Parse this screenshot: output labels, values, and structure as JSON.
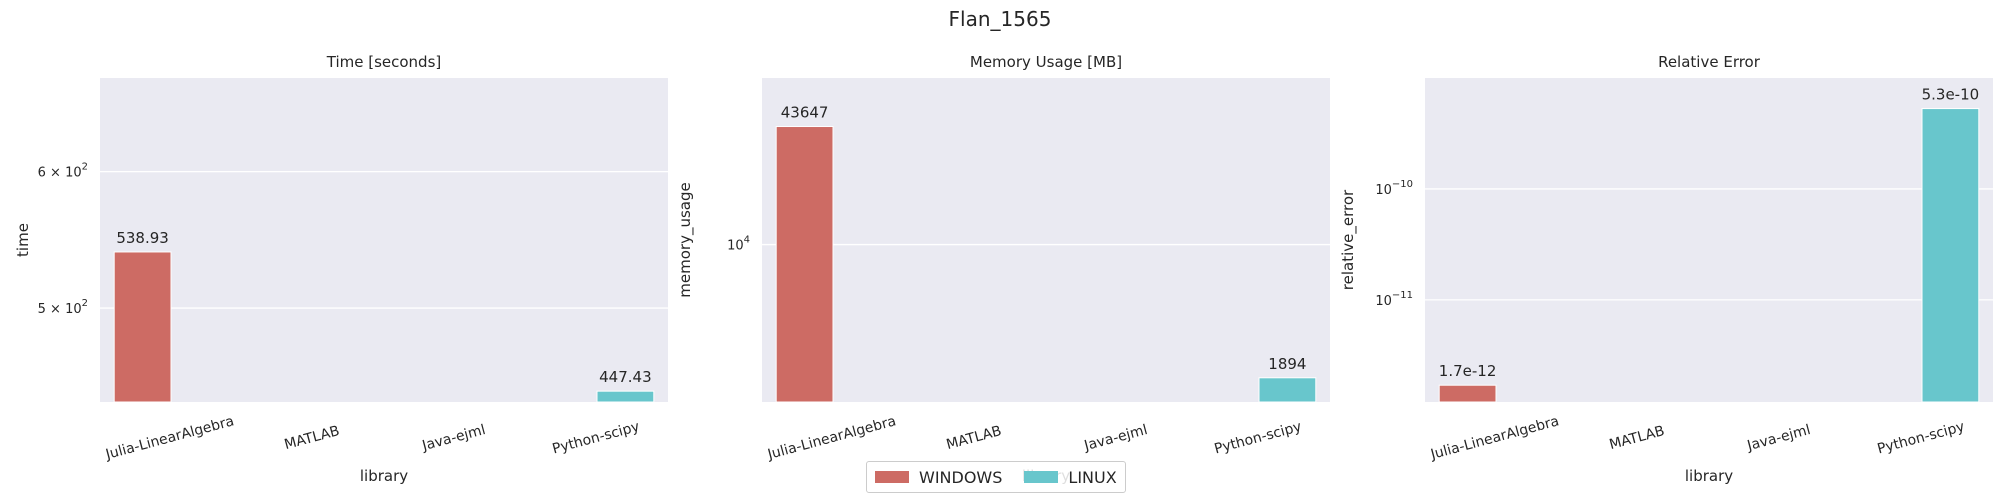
{
  "figure_title": "Flan_1565",
  "colors": {
    "WINDOWS": "#cd6b64",
    "LINUX": "#68c6cc",
    "plot_bg": "#eaeaf2",
    "grid": "#ffffff"
  },
  "legend": {
    "items": [
      {
        "label": "WINDOWS"
      },
      {
        "label": "LINUX"
      }
    ]
  },
  "chart_data": [
    {
      "type": "bar",
      "title": "Time [seconds]",
      "xlabel": "library",
      "ylabel": "time",
      "yscale": "log",
      "categories": [
        "Julia-LinearAlgebra",
        "MATLAB",
        "Java-ejml",
        "Python-scipy"
      ],
      "ylim": [
        441,
        680
      ],
      "yticks": [
        {
          "value": 500,
          "label": "5 × 10",
          "exp": "2"
        },
        {
          "value": 600,
          "label": "6 × 10",
          "exp": "2"
        }
      ],
      "series": [
        {
          "name": "WINDOWS",
          "values": [
            538.93,
            null,
            null,
            null
          ],
          "labels": [
            "538.93",
            null,
            null,
            null
          ]
        },
        {
          "name": "LINUX",
          "values": [
            null,
            null,
            null,
            447.43
          ],
          "labels": [
            null,
            null,
            null,
            "447.43"
          ]
        }
      ]
    },
    {
      "type": "bar",
      "title": "Memory Usage [MB]",
      "xlabel": "library",
      "ylabel": "memory_usage",
      "yscale": "log",
      "categories": [
        "Julia-LinearAlgebra",
        "MATLAB",
        "Java-ejml",
        "Python-scipy"
      ],
      "ylim": [
        1400,
        80000
      ],
      "yticks": [
        {
          "value": 10000,
          "label": "10",
          "exp": "4"
        }
      ],
      "series": [
        {
          "name": "WINDOWS",
          "values": [
            43647,
            null,
            null,
            null
          ],
          "labels": [
            "43647",
            null,
            null,
            null
          ]
        },
        {
          "name": "LINUX",
          "values": [
            null,
            null,
            null,
            1894
          ],
          "labels": [
            null,
            null,
            null,
            "1894"
          ]
        }
      ]
    },
    {
      "type": "bar",
      "title": "Relative Error",
      "xlabel": "library",
      "ylabel": "relative_error",
      "yscale": "log",
      "categories": [
        "Julia-LinearAlgebra",
        "MATLAB",
        "Java-ejml",
        "Python-scipy"
      ],
      "ylim": [
        1.2e-12,
        1e-09
      ],
      "yticks": [
        {
          "value": 1e-10,
          "label": "10",
          "exp": "−10"
        },
        {
          "value": 1e-11,
          "label": "10",
          "exp": "−11"
        }
      ],
      "series": [
        {
          "name": "WINDOWS",
          "values": [
            1.7e-12,
            null,
            null,
            null
          ],
          "labels": [
            "1.7e-12",
            null,
            null,
            null
          ]
        },
        {
          "name": "LINUX",
          "values": [
            null,
            null,
            null,
            5.3e-10
          ],
          "labels": [
            null,
            null,
            null,
            "5.3e-10"
          ]
        }
      ]
    }
  ]
}
